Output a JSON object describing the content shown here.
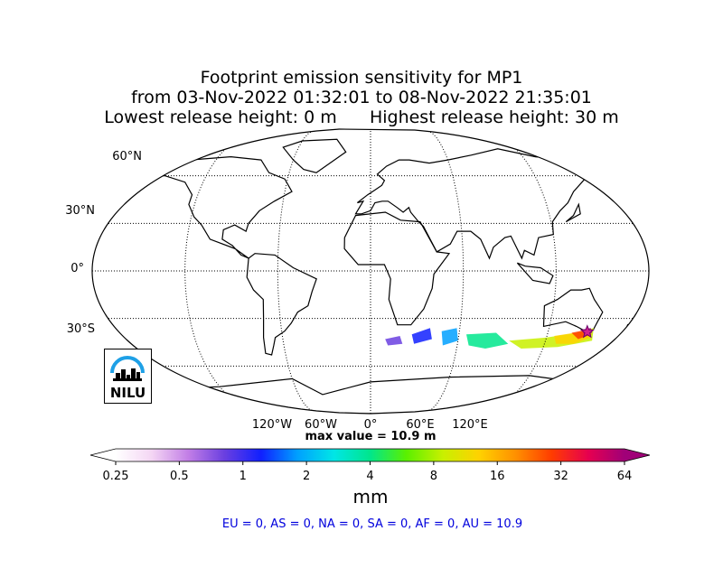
{
  "title": {
    "line1": "Footprint emission sensitivity for MP1",
    "line2": "from 03-Nov-2022 01:32:01 to 08-Nov-2022 21:35:01",
    "line3": "Lowest release height: 0 m      Highest release height: 30 m"
  },
  "logo_text": "NILU",
  "chart_data": {
    "type": "heatmap",
    "title": "Footprint emission sensitivity for MP1",
    "projection": "Robinson, global",
    "lat_tick_labels": [
      "60°N",
      "30°N",
      "0°",
      "30°S"
    ],
    "lon_tick_labels": [
      "120°W",
      "60°W",
      "0°",
      "60°E",
      "120°E"
    ],
    "max_value_label": "max value = 10.9 m",
    "max_value": 10.9,
    "colorbar": {
      "unit": "mm",
      "ticks": [
        "0.25",
        "0.5",
        "1",
        "2",
        "4",
        "8",
        "16",
        "32",
        "64"
      ],
      "scale": "log2",
      "extend": "both",
      "colors": [
        "#ffffff",
        "#f4d6f4",
        "#c27ee6",
        "#6a3fe0",
        "#1020ff",
        "#00a0ff",
        "#00e6e6",
        "#00e68c",
        "#5af000",
        "#c8f000",
        "#ffd200",
        "#ff9000",
        "#ff3c00",
        "#e60050",
        "#a00078"
      ]
    },
    "footprint_region": "Southern Ocean south of Australia and New Zealand; maximum near south-eastern Australia (release site marked with a star)",
    "release_site": {
      "lat": -38.5,
      "lon": 146.5
    },
    "regions": [
      {
        "name": "EU",
        "value": 0
      },
      {
        "name": "AS",
        "value": 0
      },
      {
        "name": "NA",
        "value": 0
      },
      {
        "name": "SA",
        "value": 0
      },
      {
        "name": "AF",
        "value": 0
      },
      {
        "name": "AU",
        "value": 10.9
      }
    ],
    "grid": true
  },
  "regions_text": "EU = 0,  AS = 0,  NA = 0,  SA = 0,  AF = 0,  AU = 10.9"
}
